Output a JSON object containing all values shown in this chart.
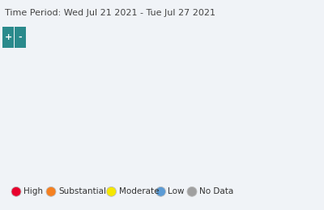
{
  "title": "Time Period: Wed Jul 21 2021 - Tue Jul 27 2021",
  "title_fontsize": 8.0,
  "bg_color": "#f0f3f7",
  "header_bg": "#e5eaf0",
  "button_color": "#2a8a8c",
  "legend_items": [
    {
      "label": "High",
      "color": "#e8002d"
    },
    {
      "label": "Substantial",
      "color": "#f58020"
    },
    {
      "label": "Moderate",
      "color": "#f5e700"
    },
    {
      "label": "Low",
      "color": "#5b9bd5"
    },
    {
      "label": "No Data",
      "color": "#a0a0a0"
    }
  ],
  "legend_fontsize": 7.5,
  "plus_btn_text": "+",
  "minus_btn_text": "-",
  "btn_text_color": "#ffffff",
  "btn_fontsize": 8,
  "map_bg": "#f0f3f7",
  "county_seed": 42,
  "county_colors": [
    "#e8002d",
    "#f58020",
    "#f5e700",
    "#5b9bd5",
    "#a0a0a0"
  ],
  "county_weights": [
    0.58,
    0.15,
    0.14,
    0.09,
    0.04
  ]
}
